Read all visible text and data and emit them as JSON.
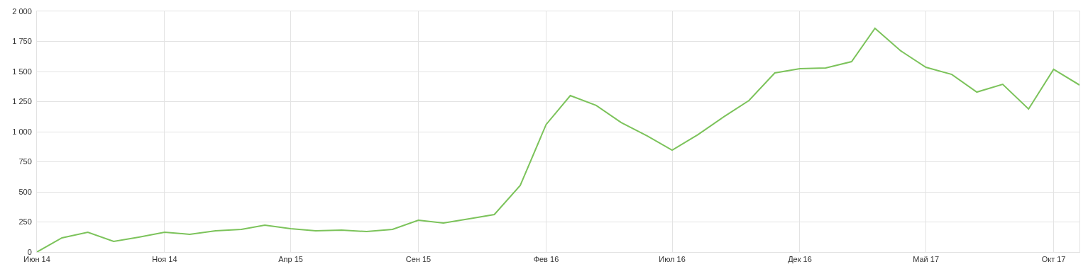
{
  "chart_data": {
    "type": "line",
    "grid": true,
    "marker": "none",
    "line_style": "solid",
    "x": [
      "2014-06",
      "2014-07",
      "2014-08",
      "2014-09",
      "2014-10",
      "2014-11",
      "2014-12",
      "2015-01",
      "2015-02",
      "2015-03",
      "2015-04",
      "2015-05",
      "2015-06",
      "2015-07",
      "2015-08",
      "2015-09",
      "2015-10",
      "2015-11",
      "2015-12",
      "2016-01",
      "2016-02",
      "2016-03",
      "2016-04",
      "2016-05",
      "2016-06",
      "2016-07",
      "2016-08",
      "2016-09",
      "2016-10",
      "2016-11",
      "2016-12",
      "2017-01",
      "2017-02",
      "2017-03",
      "2017-04",
      "2017-05",
      "2017-06",
      "2017-07",
      "2017-08",
      "2017-09",
      "2017-10",
      "2017-11"
    ],
    "series": [
      {
        "color": "#7cc35b",
        "values": [
          0,
          118,
          165,
          88,
          124,
          165,
          147,
          176,
          188,
          224,
          194,
          176,
          182,
          170,
          188,
          265,
          241,
          277,
          312,
          553,
          1059,
          1300,
          1218,
          1076,
          965,
          847,
          976,
          1124,
          1259,
          1488,
          1524,
          1529,
          1582,
          1859,
          1671,
          1535,
          1476,
          1329,
          1394,
          1188,
          1518,
          1388
        ]
      }
    ],
    "xlim": [
      "2014-06",
      "2017-11"
    ],
    "xticks": [
      {
        "value": "2014-06",
        "label": "Июн 14"
      },
      {
        "value": "2014-11",
        "label": "Ноя 14"
      },
      {
        "value": "2015-04",
        "label": "Апр 15"
      },
      {
        "value": "2015-09",
        "label": "Сен 15"
      },
      {
        "value": "2016-02",
        "label": "Фев 16"
      },
      {
        "value": "2016-07",
        "label": "Июл 16"
      },
      {
        "value": "2016-12",
        "label": "Дек 16"
      },
      {
        "value": "2017-05",
        "label": "Май 17"
      },
      {
        "value": "2017-10",
        "label": "Окт 17"
      }
    ],
    "ylim": [
      0,
      2000
    ],
    "yticks": [
      0,
      250,
      500,
      750,
      {
        "value": 1000,
        "label": "1 000"
      },
      {
        "value": 1250,
        "label": "1 250"
      },
      {
        "value": 1500,
        "label": "1 500"
      },
      {
        "value": 1750,
        "label": "1 750"
      },
      {
        "value": 2000,
        "label": "2 000"
      }
    ]
  }
}
